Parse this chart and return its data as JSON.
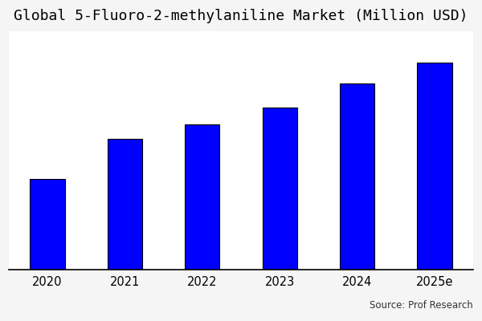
{
  "title": "Global 5-Fluoro-2-methylaniline Market (Million USD)",
  "categories": [
    "2020",
    "2021",
    "2022",
    "2023",
    "2024",
    "2025e"
  ],
  "values": [
    38,
    55,
    61,
    68,
    78,
    87
  ],
  "bar_color": "#0000ff",
  "bar_edge_color": "#000000",
  "bar_edge_width": 0.8,
  "background_color": "#f5f5f5",
  "plot_area_color": "#ffffff",
  "title_fontsize": 13,
  "tick_fontsize": 10.5,
  "source_text": "Source: Prof Research",
  "source_fontsize": 8.5,
  "ylim": [
    0,
    100
  ],
  "bar_width": 0.45,
  "title_font_family": "monospace"
}
